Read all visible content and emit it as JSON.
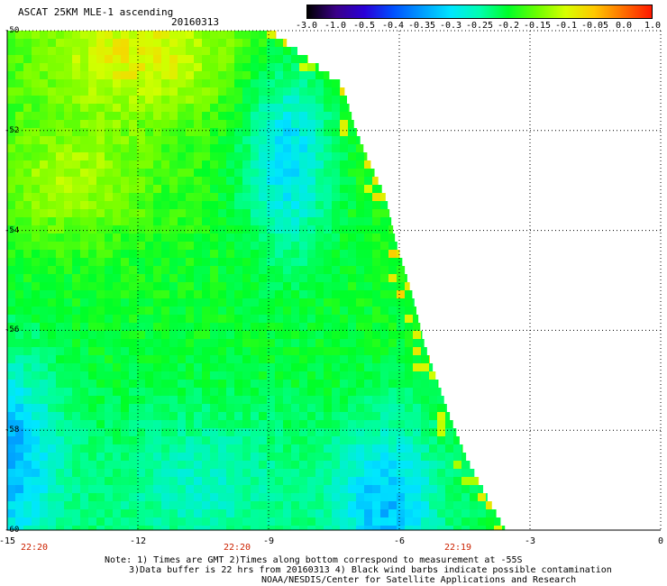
{
  "header": {
    "title": "ASCAT 25KM MLE-1 ascending",
    "date": "20160313"
  },
  "colorbar": {
    "labels": [
      "-3.0",
      "-1.0",
      "-0.5",
      "-0.4",
      "-0.35",
      "-0.3",
      "-0.25",
      "-0.2",
      "-0.15",
      "-0.1",
      "-0.05",
      "0.0",
      "1.0"
    ],
    "colors": [
      "#000000",
      "#3a0088",
      "#2a00d8",
      "#0050ff",
      "#009cff",
      "#00e6ff",
      "#00ffb0",
      "#00ff28",
      "#6cff00",
      "#d8ff00",
      "#ffc800",
      "#ff7000",
      "#ff1800"
    ]
  },
  "map": {
    "lat_labels": [
      "-50",
      "-52",
      "-54",
      "-56",
      "-58",
      "-60"
    ],
    "lon_labels": [
      "-15",
      "-12",
      "-9",
      "-6",
      "-3",
      "0"
    ],
    "time_labels": [
      "22:20",
      "22:20",
      "22:19"
    ]
  },
  "notes": {
    "line1": "Note: 1) Times are GMT 2)Times along bottom correspond to measurement at -55S",
    "line2": "3)Data buffer is 22 hrs from 20160313 4) Black wind barbs indicate possible contamination",
    "line3": "NOAA/NESDIS/Center for Satellite Applications and Research"
  }
}
